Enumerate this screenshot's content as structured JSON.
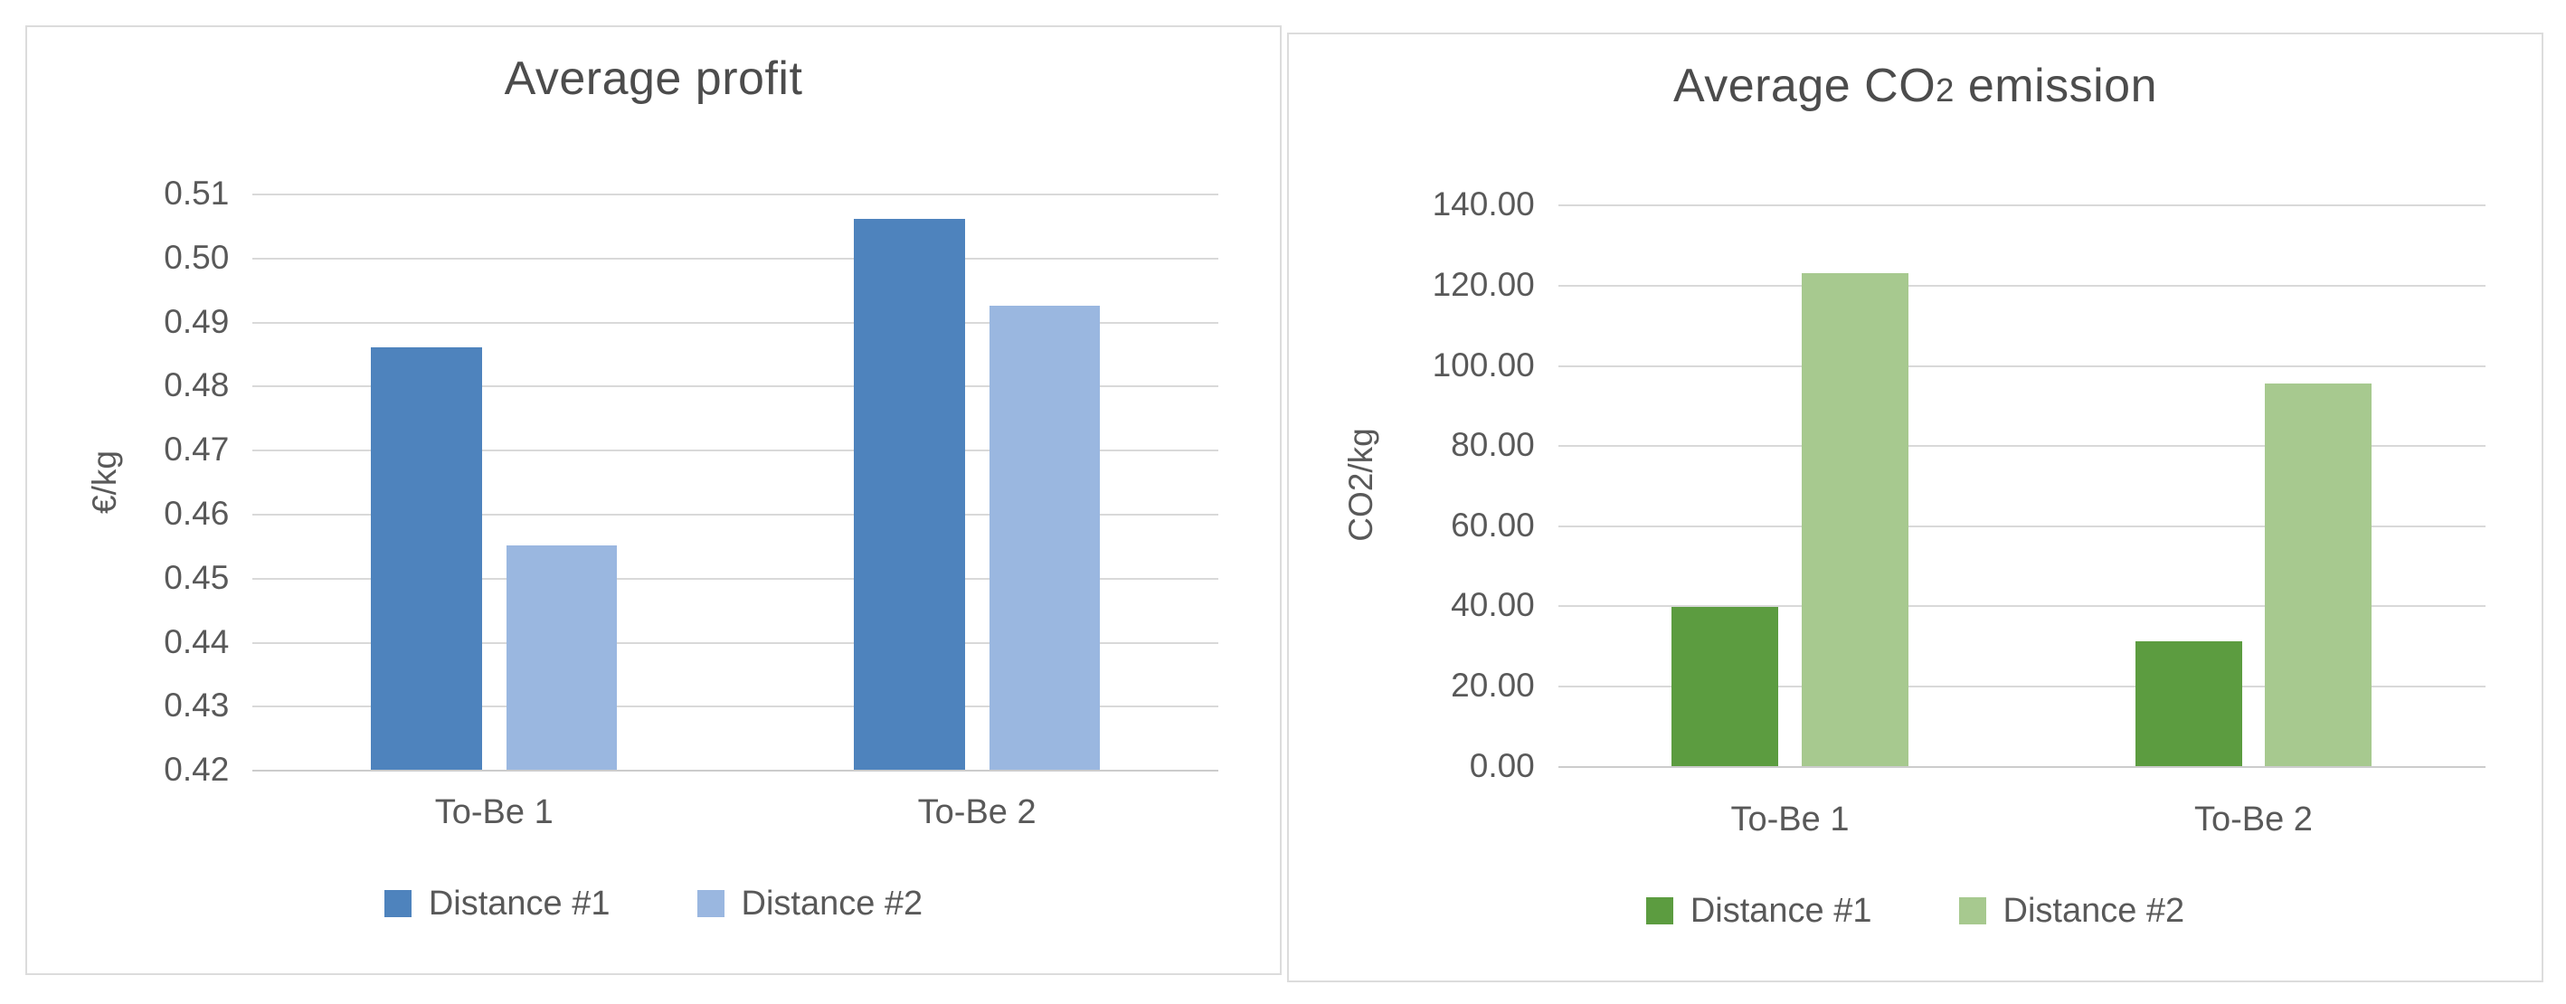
{
  "page": {
    "background": "#ffffff",
    "panel_border": "#dcdcdc",
    "text_color": "#595959",
    "title_color": "#4c4c4c",
    "gridline_color": "#d9d9d9"
  },
  "chart_data": [
    {
      "type": "bar",
      "title": "Average profit",
      "ylabel": "€/kg",
      "categories": [
        "To-Be 1",
        "To-Be 2"
      ],
      "series": [
        {
          "name": "Distance #1",
          "color": "#4e83bd",
          "values": [
            0.486,
            0.506
          ]
        },
        {
          "name": "Distance #2",
          "color": "#9ab7e0",
          "values": [
            0.455,
            0.4925
          ]
        }
      ],
      "ylim": [
        0.42,
        0.51
      ],
      "ytick_step": 0.01,
      "ytick_decimals": 2,
      "grid": true,
      "legend_position": "bottom"
    },
    {
      "type": "bar",
      "title": "Average CO2 emission",
      "title_parts": [
        {
          "text": "Average CO"
        },
        {
          "text": "2",
          "small": true
        },
        {
          "text": " emission"
        }
      ],
      "ylabel": "CO2/kg",
      "categories": [
        "To-Be 1",
        "To-Be 2"
      ],
      "series": [
        {
          "name": "Distance #1",
          "color": "#5c9c40",
          "values": [
            39.6,
            31
          ]
        },
        {
          "name": "Distance #2",
          "color": "#a7c98f",
          "values": [
            123,
            95.3
          ]
        }
      ],
      "ylim": [
        0,
        140
      ],
      "ytick_step": 20,
      "ytick_decimals": 2,
      "grid": true,
      "legend_position": "bottom"
    }
  ]
}
